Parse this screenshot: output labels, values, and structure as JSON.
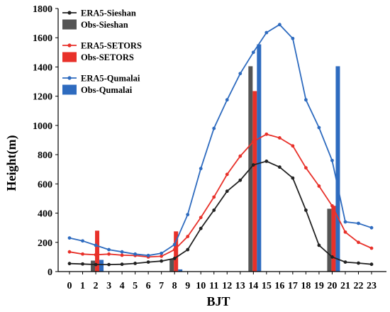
{
  "chart_data": {
    "type": "line",
    "xlabel": "BJT",
    "ylabel": "Height(m)",
    "ylim": [
      0,
      1800
    ],
    "yticks": [
      0,
      200,
      400,
      600,
      800,
      1000,
      1200,
      1400,
      1600,
      1800
    ],
    "x": [
      0,
      1,
      2,
      3,
      4,
      5,
      6,
      7,
      8,
      9,
      10,
      11,
      12,
      13,
      14,
      15,
      16,
      17,
      18,
      19,
      20,
      21,
      22,
      23
    ],
    "x_tick_labels": [
      "0",
      "1",
      "2",
      "3",
      "4",
      "5",
      "6",
      "7",
      "8",
      "9",
      "10",
      "11",
      "12",
      "13",
      "14",
      "15",
      "16",
      "17",
      "18",
      "19",
      "20",
      "21",
      "22",
      "23"
    ],
    "legend_position": "top-left",
    "grid": false,
    "series": [
      {
        "name": "ERA5-Sieshan",
        "kind": "line",
        "color": "#222222",
        "values": [
          55,
          52,
          48,
          48,
          50,
          56,
          65,
          72,
          90,
          150,
          295,
          420,
          550,
          625,
          730,
          755,
          715,
          640,
          420,
          180,
          100,
          65,
          58,
          50
        ]
      },
      {
        "name": "Obs-Sieshan",
        "kind": "bar",
        "color": "#555555",
        "x": [
          2,
          8,
          14,
          20
        ],
        "values": [
          75,
          85,
          1405,
          430
        ]
      },
      {
        "name": "ERA5-SETORS",
        "kind": "line",
        "color": "#e8312a",
        "values": [
          135,
          120,
          115,
          120,
          112,
          110,
          100,
          105,
          150,
          240,
          370,
          510,
          665,
          790,
          890,
          940,
          915,
          860,
          710,
          585,
          450,
          270,
          200,
          160
        ]
      },
      {
        "name": "Obs-SETORS",
        "kind": "bar",
        "color": "#e8312a",
        "x": [
          2,
          8,
          14,
          20
        ],
        "values": [
          280,
          275,
          1235,
          450
        ]
      },
      {
        "name": "ERA5-Qumalai",
        "kind": "line",
        "color": "#2e6bbf",
        "values": [
          230,
          210,
          180,
          150,
          135,
          120,
          110,
          125,
          185,
          390,
          705,
          980,
          1175,
          1355,
          1500,
          1635,
          1690,
          1595,
          1175,
          985,
          760,
          340,
          330,
          300
        ]
      },
      {
        "name": "Obs-Qumalai",
        "kind": "bar",
        "color": "#2e6bbf",
        "x": [
          2,
          8,
          14,
          20
        ],
        "values": [
          80,
          15,
          1555,
          1405
        ]
      }
    ]
  }
}
